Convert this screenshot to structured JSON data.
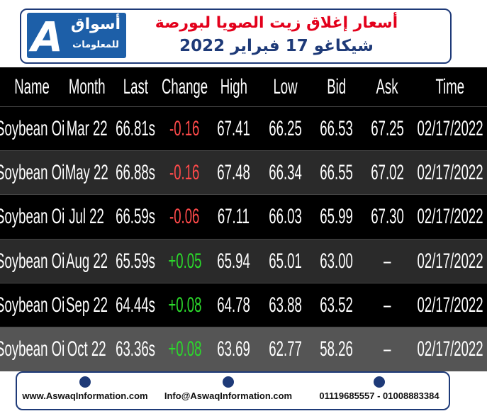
{
  "header": {
    "logo_name": "أسواق",
    "logo_sub": "للمعلومات",
    "title_line1": "أسعار إغلاق زيت الصويا لبورصة",
    "title_line2": "شيكاغو 17 فبراير 2022"
  },
  "table": {
    "columns": [
      "Name",
      "Month",
      "Last",
      "Change",
      "High",
      "Low",
      "Bid",
      "Ask",
      "Time"
    ],
    "rows": [
      [
        "Soybean Oil",
        "Mar 22",
        "66.81s",
        "-0.16",
        "67.41",
        "66.25",
        "66.53",
        "67.25",
        "02/17/2022"
      ],
      [
        "Soybean Oil",
        "May 22",
        "66.88s",
        "-0.16",
        "67.48",
        "66.34",
        "66.55",
        "67.02",
        "02/17/2022"
      ],
      [
        "Soybean Oil",
        "Jul 22",
        "66.59s",
        "-0.06",
        "67.11",
        "66.03",
        "65.99",
        "67.30",
        "02/17/2022"
      ],
      [
        "Soybean Oil",
        "Aug 22",
        "65.59s",
        "+0.05",
        "65.94",
        "65.01",
        "63.00",
        "–",
        "02/17/2022"
      ],
      [
        "Soybean Oil",
        "Sep 22",
        "64.44s",
        "+0.08",
        "64.78",
        "63.88",
        "63.52",
        "–",
        "02/17/2022"
      ],
      [
        "Soybean Oil",
        "Oct 22",
        "63.36s",
        "+0.08",
        "63.69",
        "62.77",
        "58.26",
        "–",
        "02/17/2022"
      ]
    ]
  },
  "footer": {
    "website": "www.AswaqInformation.com",
    "email": "Info@AswaqInformation.com",
    "phone": "01119685557 - 01008883384"
  }
}
